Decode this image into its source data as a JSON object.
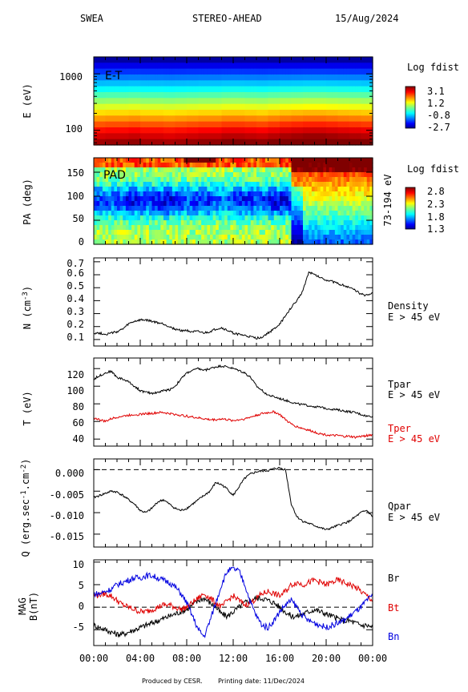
{
  "header": {
    "instrument": "SWEA",
    "spacecraft": "STEREO-AHEAD",
    "date": "15/Aug/2024"
  },
  "footer": {
    "produced_by": "Produced by CESR.",
    "printing_date": "Printing date: 11/Dec/2024"
  },
  "time_axis": {
    "ticks": [
      "00:00",
      "04:00",
      "08:00",
      "12:00",
      "16:00",
      "20:00",
      "00:00"
    ],
    "range_hours": [
      0,
      24
    ]
  },
  "colors": {
    "black": "#000000",
    "red": "#e00000",
    "blue": "#0000e0"
  },
  "chart_data": [
    {
      "id": "energy-time",
      "type": "heatmap",
      "panel_label": "E-T",
      "ylabel": "E (eV)",
      "yticks": [
        "1000",
        "100"
      ],
      "log_y": true,
      "ylim": [
        55,
        2000
      ],
      "colorbar": {
        "title": "Log fdist",
        "ticks": [
          "3.1",
          "1.2",
          "-0.8",
          "-2.7"
        ],
        "range": [
          -2.7,
          3.1
        ]
      },
      "row_levels": [
        -2.5,
        -2.1,
        -1.7,
        -1.3,
        -0.9,
        -0.5,
        -0.1,
        0.3,
        0.7,
        1.1,
        1.5,
        1.9,
        2.3,
        2.6,
        2.9
      ],
      "time_modulation": [
        0.0,
        0.05,
        0.05,
        0.1,
        0.0,
        0.0,
        -0.05,
        0.0,
        0.05,
        0.1,
        0.1,
        0.2,
        0.2,
        0.15,
        0.1,
        0.2,
        0.3,
        0.35,
        0.4,
        0.4,
        0.35,
        0.3,
        0.25,
        0.2
      ]
    },
    {
      "id": "pitch-angle",
      "type": "heatmap",
      "panel_label": "PAD",
      "ylabel": "PA (deg)",
      "side_label": "73-194 eV",
      "yticks": [
        "0",
        "50",
        "100",
        "150"
      ],
      "ylim": [
        0,
        180
      ],
      "colorbar": {
        "title": "Log fdist",
        "ticks": [
          "2.8",
          "2.3",
          "1.8",
          "1.3"
        ],
        "range": [
          1.3,
          2.8
        ]
      }
    },
    {
      "id": "density",
      "type": "line",
      "ylabel": "N (cm^-3)",
      "yticks": [
        "0.1",
        "0.2",
        "0.3",
        "0.4",
        "0.5",
        "0.6",
        "0.7"
      ],
      "ylim": [
        0.05,
        0.73
      ],
      "series": [
        {
          "name": "Density",
          "note": "E > 45 eV",
          "color": "#000000",
          "x": [
            0,
            0.5,
            1,
            1.5,
            2,
            2.5,
            3,
            3.5,
            4,
            4.5,
            5,
            5.5,
            6,
            6.5,
            7,
            7.5,
            8,
            8.5,
            9,
            9.5,
            10,
            10.5,
            11,
            11.5,
            12,
            12.5,
            13,
            13.5,
            14,
            14.5,
            15,
            15.5,
            16,
            16.5,
            17,
            17.5,
            18,
            18.5,
            19,
            19.5,
            20,
            20.5,
            21,
            21.5,
            22,
            22.5,
            23,
            23.5,
            24
          ],
          "y": [
            0.15,
            0.15,
            0.14,
            0.15,
            0.16,
            0.18,
            0.22,
            0.24,
            0.25,
            0.25,
            0.24,
            0.23,
            0.22,
            0.2,
            0.18,
            0.17,
            0.17,
            0.16,
            0.16,
            0.15,
            0.16,
            0.18,
            0.19,
            0.17,
            0.15,
            0.14,
            0.13,
            0.12,
            0.11,
            0.12,
            0.15,
            0.18,
            0.22,
            0.28,
            0.35,
            0.4,
            0.48,
            0.62,
            0.6,
            0.58,
            0.56,
            0.55,
            0.53,
            0.52,
            0.5,
            0.48,
            0.45,
            0.44,
            0.46
          ]
        }
      ]
    },
    {
      "id": "temperature",
      "type": "line",
      "ylabel": "T (eV)",
      "yticks": [
        "40",
        "60",
        "80",
        "100",
        "120"
      ],
      "ylim": [
        32,
        132
      ],
      "series": [
        {
          "name": "Tpar",
          "note": "E > 45 eV",
          "color": "#000000",
          "x": [
            0,
            0.5,
            1,
            1.5,
            2,
            2.5,
            3,
            3.5,
            4,
            4.5,
            5,
            5.5,
            6,
            6.5,
            7,
            7.5,
            8,
            8.5,
            9,
            9.5,
            10,
            10.5,
            11,
            11.5,
            12,
            12.5,
            13,
            13.5,
            14,
            14.5,
            15,
            15.5,
            16,
            16.5,
            17,
            17.5,
            18,
            18.5,
            19,
            19.5,
            20,
            20.5,
            21,
            21.5,
            22,
            22.5,
            23,
            23.5,
            24
          ],
          "y": [
            108,
            112,
            115,
            117,
            110,
            108,
            105,
            100,
            95,
            93,
            92,
            93,
            95,
            96,
            100,
            108,
            115,
            118,
            120,
            118,
            120,
            122,
            123,
            122,
            120,
            118,
            115,
            110,
            100,
            95,
            90,
            88,
            86,
            84,
            82,
            80,
            79,
            78,
            77,
            76,
            75,
            74,
            73,
            72,
            71,
            70,
            68,
            66,
            66
          ]
        },
        {
          "name": "Tper",
          "note": "E > 45 eV",
          "color": "#e00000",
          "x": [
            0,
            0.5,
            1,
            1.5,
            2,
            2.5,
            3,
            3.5,
            4,
            4.5,
            5,
            5.5,
            6,
            6.5,
            7,
            7.5,
            8,
            8.5,
            9,
            9.5,
            10,
            10.5,
            11,
            11.5,
            12,
            12.5,
            13,
            13.5,
            14,
            14.5,
            15,
            15.5,
            16,
            16.5,
            17,
            17.5,
            18,
            18.5,
            19,
            19.5,
            20,
            20.5,
            21,
            21.5,
            22,
            22.5,
            23,
            23.5,
            24
          ],
          "y": [
            64,
            62,
            60,
            63,
            65,
            66,
            67,
            68,
            68,
            69,
            69,
            70,
            70,
            69,
            68,
            67,
            66,
            65,
            64,
            63,
            62,
            62,
            63,
            62,
            61,
            62,
            63,
            65,
            67,
            69,
            70,
            71,
            68,
            62,
            57,
            54,
            52,
            50,
            48,
            46,
            45,
            44,
            44,
            43,
            43,
            42,
            43,
            44,
            45
          ]
        }
      ]
    },
    {
      "id": "heat-flux",
      "type": "line",
      "ylabel": "Q (erg.sec^-1.cm^-2)",
      "yticks": [
        "0.000",
        "-0.005",
        "-0.010",
        "-0.015"
      ],
      "ylim": [
        -0.018,
        0.0025
      ],
      "reference_line": 0,
      "series": [
        {
          "name": "Qpar",
          "note": "E > 45 eV",
          "color": "#000000",
          "x": [
            0,
            0.5,
            1,
            1.5,
            2,
            2.5,
            3,
            3.5,
            4,
            4.5,
            5,
            5.5,
            6,
            6.5,
            7,
            7.5,
            8,
            8.5,
            9,
            9.5,
            10,
            10.5,
            11,
            11.5,
            12,
            12.5,
            13,
            13.5,
            14,
            14.5,
            15,
            15.5,
            16,
            16.5,
            17,
            17.5,
            18,
            18.5,
            19,
            19.5,
            20,
            20.5,
            21,
            21.5,
            22,
            22.5,
            23,
            23.5,
            24
          ],
          "y": [
            -0.0065,
            -0.006,
            -0.0055,
            -0.005,
            -0.0052,
            -0.006,
            -0.007,
            -0.008,
            -0.0095,
            -0.01,
            -0.009,
            -0.0075,
            -0.007,
            -0.008,
            -0.009,
            -0.0095,
            -0.009,
            -0.008,
            -0.007,
            -0.006,
            -0.005,
            -0.003,
            -0.0035,
            -0.0045,
            -0.006,
            -0.004,
            -0.002,
            -0.001,
            -0.0005,
            -0.0003,
            -0.0002,
            0.0002,
            0.0004,
            0.0,
            -0.008,
            -0.011,
            -0.012,
            -0.0125,
            -0.013,
            -0.0135,
            -0.014,
            -0.0135,
            -0.013,
            -0.0125,
            -0.012,
            -0.011,
            -0.01,
            -0.0095,
            -0.011
          ]
        }
      ]
    },
    {
      "id": "magnetic-field",
      "type": "line",
      "ylabel": "MAG B(nT)",
      "yticks": [
        "10",
        "5",
        "0",
        "-5"
      ],
      "ylim": [
        -8.5,
        10.5
      ],
      "reference_line": 0,
      "series": [
        {
          "name": "Br",
          "color": "#000000",
          "x": [
            0,
            0.5,
            1,
            1.5,
            2,
            2.5,
            3,
            3.5,
            4,
            4.5,
            5,
            5.5,
            6,
            6.5,
            7,
            7.5,
            8,
            8.5,
            9,
            9.5,
            10,
            10.5,
            11,
            11.5,
            12,
            12.5,
            13,
            13.5,
            14,
            14.5,
            15,
            15.5,
            16,
            16.5,
            17,
            17.5,
            18,
            18.5,
            19,
            19.5,
            20,
            20.5,
            21,
            21.5,
            22,
            22.5,
            23,
            23.5,
            24
          ],
          "y": [
            -4.0,
            -4.5,
            -5.0,
            -5.5,
            -6.0,
            -6.0,
            -5.5,
            -5.0,
            -4.5,
            -4.0,
            -3.5,
            -3.0,
            -2.5,
            -2.0,
            -1.5,
            -1.0,
            -0.5,
            0.5,
            1.5,
            2.0,
            1.0,
            0.0,
            -1.5,
            -2.0,
            -1.0,
            0.0,
            1.0,
            1.5,
            2.0,
            2.0,
            1.5,
            1.0,
            0.0,
            -1.0,
            -2.0,
            -2.0,
            -1.5,
            -1.0,
            -0.5,
            -1.0,
            -1.5,
            -2.0,
            -2.5,
            -3.0,
            -3.0,
            -3.5,
            -4.0,
            -4.0,
            -4.5
          ]
        },
        {
          "name": "Bt",
          "color": "#e00000",
          "x": [
            0,
            0.5,
            1,
            1.5,
            2,
            2.5,
            3,
            3.5,
            4,
            4.5,
            5,
            5.5,
            6,
            6.5,
            7,
            7.5,
            8,
            8.5,
            9,
            9.5,
            10,
            10.5,
            11,
            11.5,
            12,
            12.5,
            13,
            13.5,
            14,
            14.5,
            15,
            15.5,
            16,
            16.5,
            17,
            17.5,
            18,
            18.5,
            19,
            19.5,
            20,
            20.5,
            21,
            21.5,
            22,
            22.5,
            23,
            23.5,
            24
          ],
          "y": [
            2.5,
            2.8,
            3.0,
            2.5,
            1.5,
            0.5,
            0.0,
            -0.5,
            -1.0,
            -1.0,
            -0.5,
            0.0,
            0.5,
            0.5,
            0.0,
            -0.5,
            0.0,
            1.0,
            2.0,
            3.0,
            2.0,
            1.0,
            0.0,
            1.5,
            2.5,
            1.5,
            0.5,
            1.0,
            2.0,
            3.0,
            3.5,
            3.0,
            2.5,
            3.5,
            5.0,
            5.5,
            5.0,
            5.5,
            6.0,
            5.5,
            5.0,
            5.5,
            6.0,
            5.5,
            5.0,
            4.5,
            3.5,
            2.5,
            1.5
          ]
        },
        {
          "name": "Bn",
          "color": "#0000e0",
          "x": [
            0,
            0.5,
            1,
            1.5,
            2,
            2.5,
            3,
            3.5,
            4,
            4.5,
            5,
            5.5,
            6,
            6.5,
            7,
            7.5,
            8,
            8.5,
            9,
            9.5,
            10,
            10.5,
            11,
            11.5,
            12,
            12.5,
            13,
            13.5,
            14,
            14.5,
            15,
            15.5,
            16,
            16.5,
            17,
            17.5,
            18,
            18.5,
            19,
            19.5,
            20,
            20.5,
            21,
            21.5,
            22,
            22.5,
            23,
            23.5,
            24
          ],
          "y": [
            3.0,
            3.0,
            3.5,
            4.0,
            5.0,
            5.5,
            6.0,
            6.5,
            6.5,
            7.0,
            7.0,
            6.5,
            6.0,
            5.5,
            4.5,
            3.0,
            1.0,
            -2.0,
            -5.0,
            -6.5,
            -3.0,
            1.0,
            5.0,
            8.0,
            8.5,
            8.0,
            5.0,
            1.0,
            -2.0,
            -4.0,
            -4.5,
            -3.0,
            -1.0,
            0.5,
            1.5,
            0.0,
            -2.0,
            -3.0,
            -3.5,
            -4.0,
            -4.5,
            -4.0,
            -3.5,
            -3.0,
            -2.0,
            -1.0,
            0.0,
            1.5,
            2.5
          ]
        }
      ]
    }
  ]
}
